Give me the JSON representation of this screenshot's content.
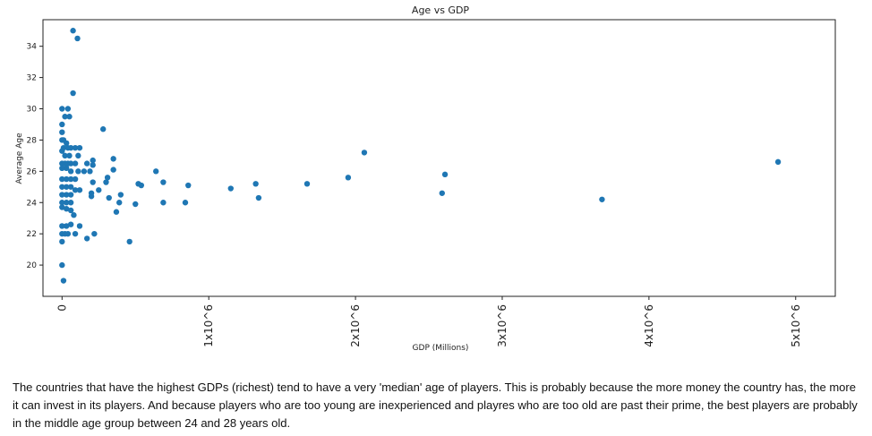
{
  "chart_data": {
    "type": "scatter",
    "title": "Age vs GDP",
    "xlabel": "GDP (Millions)",
    "ylabel": "Average Age",
    "xlim": [
      -130000,
      5270000
    ],
    "ylim": [
      18.0,
      35.7
    ],
    "xticks": [
      {
        "value": 0,
        "label": "0"
      },
      {
        "value": 1000000,
        "label": "1x10^6"
      },
      {
        "value": 2000000,
        "label": "2x10^6"
      },
      {
        "value": 3000000,
        "label": "3x10^6"
      },
      {
        "value": 4000000,
        "label": "4x10^6"
      },
      {
        "value": 5000000,
        "label": "5x10^6"
      }
    ],
    "yticks": [
      20,
      22,
      24,
      26,
      28,
      30,
      32,
      34
    ],
    "grid": false,
    "color": "#1f77b4",
    "points": [
      [
        75000,
        35.0
      ],
      [
        105000,
        34.5
      ],
      [
        75000,
        31.0
      ],
      [
        0,
        30.0
      ],
      [
        40000,
        30.0
      ],
      [
        20000,
        29.5
      ],
      [
        50000,
        29.5
      ],
      [
        0,
        29.0
      ],
      [
        280000,
        28.7
      ],
      [
        0,
        28.5
      ],
      [
        10000,
        28.0
      ],
      [
        0,
        28.0
      ],
      [
        30000,
        27.8
      ],
      [
        10000,
        27.5
      ],
      [
        40000,
        27.5
      ],
      [
        60000,
        27.5
      ],
      [
        90000,
        27.5
      ],
      [
        120000,
        27.5
      ],
      [
        0,
        27.3
      ],
      [
        20000,
        27.0
      ],
      [
        50000,
        27.0
      ],
      [
        110000,
        27.0
      ],
      [
        0,
        26.5
      ],
      [
        20000,
        26.5
      ],
      [
        40000,
        26.5
      ],
      [
        60000,
        26.5
      ],
      [
        90000,
        26.5
      ],
      [
        170000,
        26.5
      ],
      [
        210000,
        26.7
      ],
      [
        210000,
        26.4
      ],
      [
        350000,
        26.8
      ],
      [
        0,
        26.2
      ],
      [
        30000,
        26.2
      ],
      [
        60000,
        26.0
      ],
      [
        110000,
        26.0
      ],
      [
        150000,
        26.0
      ],
      [
        190000,
        26.0
      ],
      [
        350000,
        26.1
      ],
      [
        640000,
        26.0
      ],
      [
        0,
        25.5
      ],
      [
        30000,
        25.5
      ],
      [
        60000,
        25.5
      ],
      [
        90000,
        25.5
      ],
      [
        210000,
        25.3
      ],
      [
        310000,
        25.6
      ],
      [
        300000,
        25.3
      ],
      [
        520000,
        25.2
      ],
      [
        540000,
        25.1
      ],
      [
        690000,
        25.3
      ],
      [
        860000,
        25.1
      ],
      [
        0,
        25.0
      ],
      [
        30000,
        25.0
      ],
      [
        60000,
        25.0
      ],
      [
        90000,
        24.8
      ],
      [
        120000,
        24.8
      ],
      [
        200000,
        24.6
      ],
      [
        250000,
        24.8
      ],
      [
        1150000,
        24.9
      ],
      [
        1320000,
        25.2
      ],
      [
        0,
        24.5
      ],
      [
        30000,
        24.5
      ],
      [
        60000,
        24.5
      ],
      [
        200000,
        24.4
      ],
      [
        320000,
        24.3
      ],
      [
        400000,
        24.5
      ],
      [
        1340000,
        24.3
      ],
      [
        0,
        24.0
      ],
      [
        30000,
        24.0
      ],
      [
        60000,
        24.0
      ],
      [
        390000,
        24.0
      ],
      [
        500000,
        23.9
      ],
      [
        690000,
        24.0
      ],
      [
        840000,
        24.0
      ],
      [
        0,
        23.7
      ],
      [
        30000,
        23.6
      ],
      [
        60000,
        23.5
      ],
      [
        80000,
        23.2
      ],
      [
        370000,
        23.4
      ],
      [
        0,
        22.5
      ],
      [
        30000,
        22.5
      ],
      [
        60000,
        22.6
      ],
      [
        120000,
        22.5
      ],
      [
        0,
        22.0
      ],
      [
        20000,
        22.0
      ],
      [
        40000,
        22.0
      ],
      [
        90000,
        22.0
      ],
      [
        220000,
        22.0
      ],
      [
        0,
        21.5
      ],
      [
        170000,
        21.7
      ],
      [
        460000,
        21.5
      ],
      [
        0,
        20.0
      ],
      [
        10000,
        19.0
      ],
      [
        1670000,
        25.2
      ],
      [
        1950000,
        25.6
      ],
      [
        2060000,
        27.2
      ],
      [
        2590000,
        24.6
      ],
      [
        2610000,
        25.8
      ],
      [
        3680000,
        24.2
      ],
      [
        4880000,
        26.6
      ]
    ]
  },
  "caption": "The countries that have the highest GDPs (richest) tend to have a very 'median' age of players. This is probably because the more money the country has, the more it can invest in its players. And because players who are too young are inexperienced and playres who are too old are past their prime, the best players are probably in the middle age group between 24 and 28 years old."
}
